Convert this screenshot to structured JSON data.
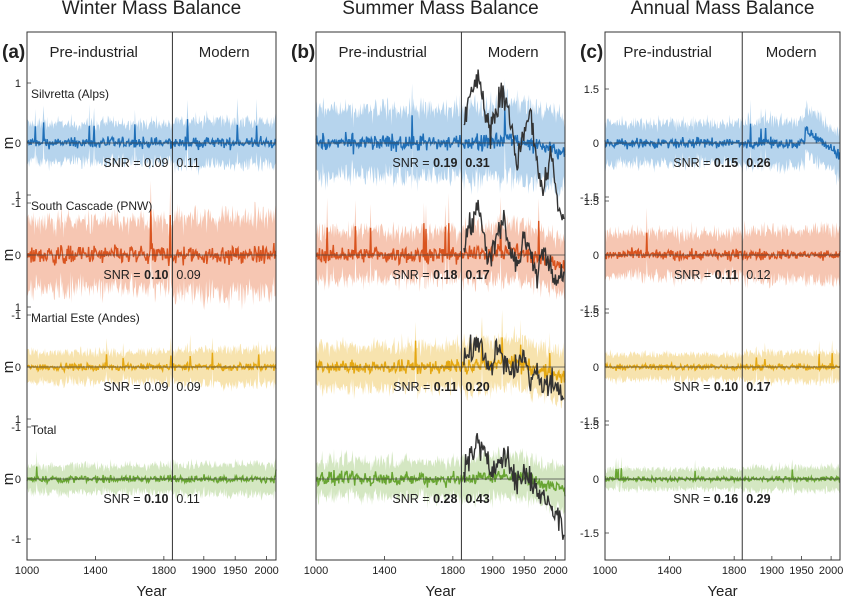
{
  "chart_data": [
    {
      "type": "line",
      "panel_label": "(a)",
      "title": "Winter Mass Balance",
      "xlabel": "Year",
      "ylabel": "m",
      "eras": [
        "Pre-industrial",
        "Modern"
      ],
      "x_ticks": [
        "1000",
        "1400",
        "1800",
        "1900",
        "1950",
        "2000"
      ],
      "y_ticks": [
        "1",
        "0",
        "-1"
      ],
      "rows": [
        {
          "name": "Silvretta (Alps)",
          "color": "#1f6fb8",
          "band_color": "#a9cdea",
          "amp": 0.08,
          "band": 0.32,
          "snr_pre": "0.09",
          "snr_mod": "0.11",
          "bold_pre": false,
          "bold_mod": false
        },
        {
          "name": "South Cascade (PNW)",
          "color": "#d9541f",
          "band_color": "#f4bca5",
          "amp": 0.14,
          "band": 0.55,
          "snr_pre": "0.10",
          "snr_mod": "0.09",
          "bold_pre": true,
          "bold_mod": false
        },
        {
          "name": "Martial Este (Andes)",
          "color": "#e5a812",
          "band_color": "#f6dea0",
          "amp": 0.05,
          "band": 0.25,
          "snr_pre": "0.09",
          "snr_mod": "0.09",
          "bold_pre": false,
          "bold_mod": false
        },
        {
          "name": "Total",
          "color": "#68a532",
          "band_color": "#cde3b7",
          "amp": 0.05,
          "band": 0.22,
          "snr_pre": "0.10",
          "snr_mod": "0.11",
          "bold_pre": true,
          "bold_mod": false
        }
      ]
    },
    {
      "type": "line",
      "panel_label": "(b)",
      "title": "Summer Mass Balance",
      "xlabel": "Year",
      "eras": [
        "Pre-industrial",
        "Modern"
      ],
      "x_ticks": [
        "1000",
        "1400",
        "1800",
        "1900",
        "1950",
        "2000"
      ],
      "y_ticks": [],
      "rows": [
        {
          "name": "Silvretta (Alps)",
          "color": "#1f6fb8",
          "band_color": "#a9cdea",
          "amp": 0.12,
          "band": 0.55,
          "snr_pre": "0.19",
          "snr_mod": "0.31",
          "bold_pre": true,
          "bold_mod": true,
          "obs": [
            0.3,
            0.8,
            1.1,
            0.7,
            0.2,
            0.6,
            0.9,
            0.4,
            -0.3,
            0.1,
            0.5,
            -0.4,
            -0.8,
            -0.2,
            -0.9,
            -1.4
          ]
        },
        {
          "name": "South Cascade (PNW)",
          "color": "#d9541f",
          "band_color": "#f4bca5",
          "amp": 0.12,
          "band": 0.4,
          "snr_pre": "0.18",
          "snr_mod": "0.17",
          "bold_pre": true,
          "bold_mod": true,
          "obs": [
            0.2,
            0.5,
            0.8,
            0.3,
            -0.1,
            0.4,
            0.6,
            0.1,
            -0.2,
            0.3,
            0.0,
            -0.3,
            0.1,
            -0.2,
            -0.4,
            -0.3
          ]
        },
        {
          "name": "Martial Este (Andes)",
          "color": "#e5a812",
          "band_color": "#f6dea0",
          "amp": 0.1,
          "band": 0.35,
          "snr_pre": "0.11",
          "snr_mod": "0.20",
          "bold_pre": true,
          "bold_mod": true,
          "obs": [
            0.1,
            0.3,
            0.4,
            0.2,
            0.0,
            0.3,
            0.1,
            -0.1,
            0.0,
            0.2,
            -0.2,
            -0.1,
            -0.3,
            -0.2,
            -0.4,
            -0.5
          ]
        },
        {
          "name": "Total",
          "color": "#68a532",
          "band_color": "#cde3b7",
          "amp": 0.1,
          "band": 0.3,
          "snr_pre": "0.28",
          "snr_mod": "0.43",
          "bold_pre": true,
          "bold_mod": true,
          "obs": [
            0.1,
            0.4,
            0.6,
            0.4,
            0.1,
            0.3,
            0.5,
            0.2,
            -0.1,
            0.1,
            0.0,
            -0.2,
            -0.3,
            -0.4,
            -0.6,
            -0.9
          ]
        }
      ]
    },
    {
      "type": "line",
      "panel_label": "(c)",
      "title": "Annual Mass Balance",
      "xlabel": "Year",
      "eras": [
        "Pre-industrial",
        "Modern"
      ],
      "x_ticks": [
        "1000",
        "1400",
        "1800",
        "1900",
        "1950",
        "2000"
      ],
      "y_ticks": [
        "1.5",
        "0",
        "-1.5"
      ],
      "rows": [
        {
          "name": "Silvretta (Alps)",
          "color": "#1f6fb8",
          "band_color": "#a9cdea",
          "amp": 0.12,
          "band": 0.55,
          "snr_pre": "0.15",
          "snr_mod": "0.26",
          "bold_pre": true,
          "bold_mod": true
        },
        {
          "name": "South Cascade (PNW)",
          "color": "#d9541f",
          "band_color": "#f4bca5",
          "amp": 0.13,
          "band": 0.6,
          "snr_pre": "0.11",
          "snr_mod": "0.12",
          "bold_pre": true,
          "bold_mod": false
        },
        {
          "name": "Martial Este (Andes)",
          "color": "#e5a812",
          "band_color": "#f6dea0",
          "amp": 0.07,
          "band": 0.35,
          "snr_pre": "0.10",
          "snr_mod": "0.17",
          "bold_pre": true,
          "bold_mod": true
        },
        {
          "name": "Total",
          "color": "#68a532",
          "band_color": "#cde3b7",
          "amp": 0.06,
          "band": 0.28,
          "snr_pre": "0.16",
          "snr_mod": "0.29",
          "bold_pre": true,
          "bold_mod": true
        }
      ]
    }
  ],
  "snr_label": "SNR = "
}
